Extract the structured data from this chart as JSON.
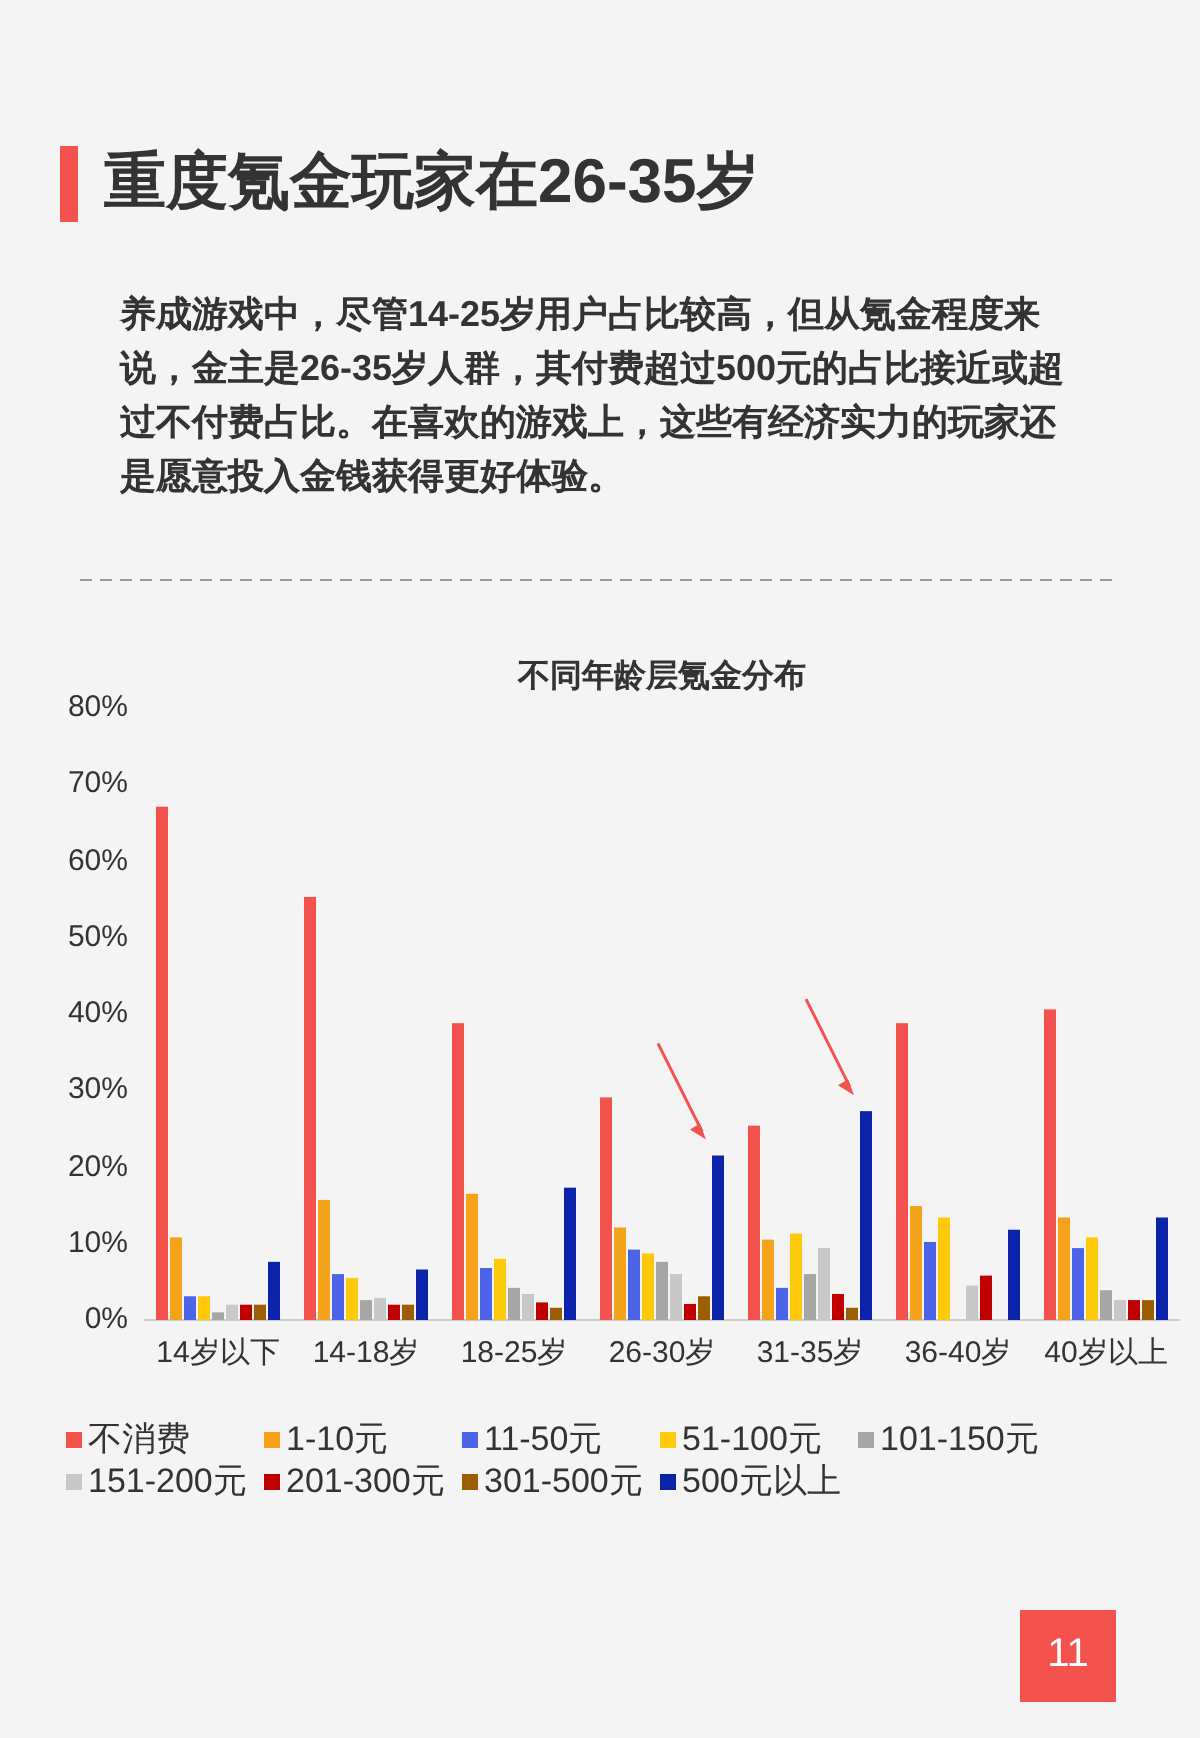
{
  "chart_data": {
    "type": "bar",
    "title": "重度氪金玩家在26-35岁",
    "subtitle": "养成游戏中，尽管14-25岁用户占比较高，但从氪金程度来说，金主是26-35岁人群，其付费超过500元的占比接近或超过不付费占比。在喜欢的游戏上，这些有经济实力的玩家还是愿意投入金钱获得更好体验。",
    "annotations": [
      "不同年龄层氪金分布",
      "11"
    ],
    "categories": [
      "14岁以下",
      "14-18岁",
      "18-25岁",
      "26-30岁",
      "31-35岁",
      "36-40岁",
      "40岁以上"
    ],
    "series": [
      {
        "name": "不消费",
        "color": "#f4524d",
        "values": [
          67.1,
          55.3,
          38.8,
          29.1,
          25.4,
          38.8,
          40.6
        ]
      },
      {
        "name": "1-10元",
        "color": "#f5a31a",
        "values": [
          10.8,
          15.7,
          16.5,
          12.1,
          10.5,
          14.9,
          13.4
        ]
      },
      {
        "name": "11-50元",
        "color": "#4d64e8",
        "values": [
          3.1,
          6.0,
          6.8,
          9.2,
          4.2,
          10.2,
          9.4
        ]
      },
      {
        "name": "51-100元",
        "color": "#ffc80a",
        "values": [
          3.1,
          5.5,
          8.0,
          8.7,
          11.3,
          13.4,
          10.8
        ]
      },
      {
        "name": "101-150元",
        "color": "#a6a6a6",
        "values": [
          1.0,
          2.6,
          4.2,
          7.6,
          6.0,
          0,
          3.9
        ]
      },
      {
        "name": "151-200元",
        "color": "#c8c8c8",
        "values": [
          2.0,
          2.9,
          3.4,
          6.0,
          9.4,
          4.5,
          2.6
        ]
      },
      {
        "name": "201-300元",
        "color": "#c00000",
        "values": [
          2.0,
          2.0,
          2.3,
          2.1,
          3.4,
          5.8,
          2.6
        ]
      },
      {
        "name": "301-500元",
        "color": "#9c5f00",
        "values": [
          2.0,
          2.0,
          1.6,
          3.1,
          1.6,
          0,
          2.6
        ]
      },
      {
        "name": "500元以上",
        "color": "#0a23a8",
        "values": [
          7.6,
          6.6,
          17.3,
          21.5,
          27.3,
          11.8,
          13.4
        ]
      }
    ],
    "ylim": [
      0,
      80
    ],
    "yticks": [
      {
        "value": 0,
        "label": "0%"
      },
      {
        "value": 10,
        "label": "10%"
      },
      {
        "value": 20,
        "label": "20%"
      },
      {
        "value": 30,
        "label": "30%"
      },
      {
        "value": 40,
        "label": "40%"
      },
      {
        "value": 50,
        "label": "50%"
      },
      {
        "value": 60,
        "label": "60%"
      },
      {
        "value": 70,
        "label": "70%"
      },
      {
        "value": 80,
        "label": "80%"
      }
    ],
    "grid": false,
    "legend": "bottom"
  }
}
